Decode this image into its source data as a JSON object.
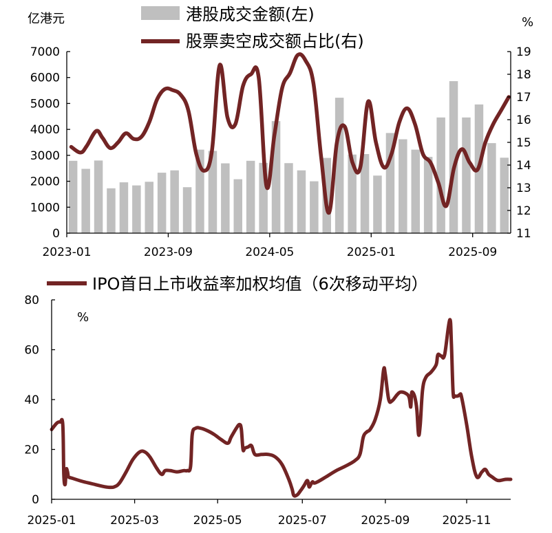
{
  "charts": [
    {
      "type": "bar+line",
      "left_unit": "亿港元",
      "right_unit": "%",
      "legend": [
        {
          "label": "港股成交金额(左)",
          "kind": "bar",
          "color": "#bfbfbf"
        },
        {
          "label": "股票卖空成交额占比(右)",
          "kind": "line",
          "color": "#722424"
        }
      ],
      "y_left": {
        "min": 0,
        "max": 7000,
        "ticks": [
          "0",
          "1000",
          "2000",
          "3000",
          "4000",
          "5000",
          "6000",
          "7000"
        ]
      },
      "y_right": {
        "min": 11,
        "max": 19,
        "ticks": [
          "11",
          "12",
          "13",
          "14",
          "15",
          "16",
          "17",
          "18",
          "19"
        ]
      },
      "x_ticks": [
        {
          "label": "2023-01",
          "index": 0
        },
        {
          "label": "2023-09",
          "index": 8
        },
        {
          "label": "2024-05",
          "index": 16
        },
        {
          "label": "2025-01",
          "index": 24
        },
        {
          "label": "2025-09",
          "index": 32
        }
      ],
      "bar_values": [
        2790,
        2480,
        2800,
        1730,
        1960,
        1840,
        1980,
        2330,
        2420,
        1770,
        3220,
        3170,
        2690,
        2080,
        2790,
        2710,
        4320,
        2700,
        2420,
        2000,
        2900,
        5220,
        3030,
        3050,
        2220,
        3860,
        3620,
        3220,
        2940,
        4460,
        5860,
        4460,
        4960,
        3470,
        2910
      ],
      "short_ratio_points": [
        [
          0.0,
          14.8
        ],
        [
          0.6,
          14.55
        ],
        [
          1.0,
          14.85
        ],
        [
          1.6,
          15.5
        ],
        [
          2.0,
          15.2
        ],
        [
          2.5,
          14.75
        ],
        [
          3.0,
          15.0
        ],
        [
          3.5,
          15.4
        ],
        [
          4.0,
          15.15
        ],
        [
          4.5,
          15.25
        ],
        [
          5.0,
          15.9
        ],
        [
          5.5,
          16.9
        ],
        [
          6.0,
          17.35
        ],
        [
          6.5,
          17.3
        ],
        [
          7.0,
          17.1
        ],
        [
          7.5,
          16.4
        ],
        [
          8.0,
          14.5
        ],
        [
          8.5,
          13.75
        ],
        [
          9.0,
          14.6
        ],
        [
          9.5,
          18.4
        ],
        [
          10.0,
          16.1
        ],
        [
          10.5,
          15.8
        ],
        [
          11.0,
          17.5
        ],
        [
          11.5,
          18.0
        ],
        [
          12.0,
          17.85
        ],
        [
          12.5,
          13.05
        ],
        [
          13.0,
          15.3
        ],
        [
          13.5,
          17.4
        ],
        [
          14.0,
          18.05
        ],
        [
          14.5,
          18.85
        ],
        [
          15.0,
          18.6
        ],
        [
          15.5,
          17.6
        ],
        [
          16.0,
          14.3
        ],
        [
          16.5,
          11.9
        ],
        [
          17.0,
          15.0
        ],
        [
          17.5,
          15.7
        ],
        [
          18.0,
          14.1
        ],
        [
          18.5,
          13.9
        ],
        [
          19.0,
          16.8
        ],
        [
          19.5,
          15.0
        ],
        [
          20.0,
          13.9
        ],
        [
          20.5,
          14.5
        ],
        [
          21.0,
          15.9
        ],
        [
          21.5,
          16.5
        ],
        [
          22.0,
          15.8
        ],
        [
          22.5,
          14.5
        ],
        [
          23.0,
          14.1
        ],
        [
          23.5,
          13.2
        ],
        [
          24.0,
          12.2
        ],
        [
          24.5,
          13.9
        ],
        [
          25.0,
          14.7
        ],
        [
          25.5,
          14.1
        ],
        [
          26.0,
          13.8
        ],
        [
          26.5,
          15.0
        ],
        [
          27.0,
          15.8
        ],
        [
          27.5,
          16.4
        ],
        [
          28.0,
          17.0
        ]
      ]
    },
    {
      "type": "line",
      "legend": [
        {
          "label": "IPO首日上市收益率加权均值（6次移动平均）",
          "color": "#722424"
        }
      ],
      "y_unit": "%",
      "y": {
        "min": 0,
        "max": 80,
        "ticks": [
          "0",
          "20",
          "40",
          "60",
          "80"
        ]
      },
      "x_ticks": [
        {
          "label": "2025-01",
          "t": 0
        },
        {
          "label": "2025-03",
          "t": 2
        },
        {
          "label": "2025-05",
          "t": 4
        },
        {
          "label": "2025-07",
          "t": 6
        },
        {
          "label": "2025-09",
          "t": 8
        },
        {
          "label": "2025-11",
          "t": 10
        }
      ],
      "x_max": 10.7,
      "points": [
        [
          0.0,
          28
        ],
        [
          0.15,
          30.5
        ],
        [
          0.25,
          31
        ],
        [
          0.33,
          30
        ],
        [
          0.36,
          10
        ],
        [
          0.4,
          6
        ],
        [
          0.43,
          12
        ],
        [
          0.47,
          11
        ],
        [
          0.5,
          9
        ],
        [
          0.6,
          8.5
        ],
        [
          0.9,
          7.2
        ],
        [
          1.2,
          6.2
        ],
        [
          1.5,
          5.2
        ],
        [
          1.7,
          4.8
        ],
        [
          1.85,
          5.0
        ],
        [
          2.0,
          6.5
        ],
        [
          2.2,
          11
        ],
        [
          2.4,
          16
        ],
        [
          2.6,
          19
        ],
        [
          2.75,
          19
        ],
        [
          2.9,
          17
        ],
        [
          3.1,
          12.5
        ],
        [
          3.25,
          10
        ],
        [
          3.35,
          11.5
        ],
        [
          3.5,
          11.5
        ],
        [
          3.7,
          11
        ],
        [
          3.9,
          11.5
        ],
        [
          4.0,
          11.5
        ],
        [
          4.1,
          13
        ],
        [
          4.15,
          26
        ],
        [
          4.25,
          28.5
        ],
        [
          4.4,
          28.5
        ],
        [
          4.6,
          27.5
        ],
        [
          4.8,
          26
        ],
        [
          5.0,
          24
        ],
        [
          5.2,
          22.5
        ],
        [
          5.3,
          25
        ],
        [
          5.45,
          28.5
        ],
        [
          5.55,
          30
        ],
        [
          5.6,
          28
        ],
        [
          5.65,
          20
        ],
        [
          5.7,
          20.5
        ],
        [
          5.8,
          21
        ],
        [
          5.9,
          21.5
        ],
        [
          6.0,
          18
        ],
        [
          6.2,
          18
        ],
        [
          6.4,
          18
        ],
        [
          6.6,
          17
        ],
        [
          6.8,
          14
        ],
        [
          7.0,
          8
        ],
        [
          7.1,
          4
        ],
        [
          7.15,
          1.5
        ],
        [
          7.25,
          1.8
        ],
        [
          7.35,
          3.5
        ],
        [
          7.45,
          5.5
        ],
        [
          7.55,
          7.5
        ],
        [
          7.6,
          5
        ],
        [
          7.65,
          6
        ],
        [
          7.7,
          7
        ],
        [
          7.75,
          6.5
        ],
        [
          7.85,
          7
        ],
        [
          8.1,
          9
        ],
        [
          8.4,
          11.5
        ],
        [
          8.7,
          13.5
        ],
        [
          8.95,
          15.5
        ],
        [
          9.1,
          18
        ],
        [
          9.2,
          25
        ],
        [
          9.3,
          27
        ],
        [
          9.4,
          28
        ],
        [
          9.55,
          32
        ],
        [
          9.7,
          40
        ],
        [
          9.8,
          52
        ],
        [
          9.85,
          50
        ],
        [
          9.95,
          40
        ],
        [
          10.05,
          39.5
        ],
        [
          10.2,
          42
        ],
        [
          10.3,
          43
        ],
        [
          10.45,
          42.5
        ],
        [
          10.55,
          41
        ],
        [
          10.6,
          37
        ],
        [
          10.62,
          42
        ],
        [
          10.65,
          43
        ],
        [
          10.72,
          41
        ],
        [
          10.78,
          36
        ],
        [
          10.83,
          26
        ],
        [
          10.88,
          30
        ],
        [
          10.95,
          44
        ],
        [
          11.05,
          49
        ],
        [
          11.2,
          51
        ],
        [
          11.35,
          54
        ],
        [
          11.4,
          58
        ],
        [
          11.5,
          57.5
        ],
        [
          11.6,
          58
        ],
        [
          11.75,
          72
        ],
        [
          11.8,
          62
        ],
        [
          11.85,
          43
        ],
        [
          11.9,
          41.5
        ],
        [
          12.0,
          41.5
        ],
        [
          12.05,
          42
        ],
        [
          12.1,
          41
        ],
        [
          12.25,
          30
        ],
        [
          12.4,
          17
        ],
        [
          12.55,
          9
        ],
        [
          12.7,
          11
        ],
        [
          12.8,
          12
        ],
        [
          12.9,
          10
        ],
        [
          13.0,
          9
        ],
        [
          13.1,
          8
        ],
        [
          13.2,
          7.5
        ],
        [
          13.4,
          8
        ],
        [
          13.55,
          8
        ]
      ]
    }
  ]
}
